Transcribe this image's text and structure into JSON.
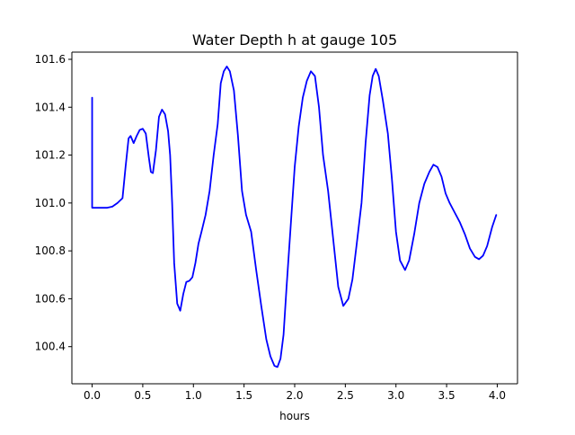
{
  "chart_data": {
    "type": "line",
    "title": "Water Depth h at gauge 105",
    "xlabel": "hours",
    "ylabel": "",
    "xlim": [
      -0.2,
      4.2
    ],
    "ylim": [
      100.245,
      101.63
    ],
    "x_ticks": [
      0.0,
      0.5,
      1.0,
      1.5,
      2.0,
      2.5,
      3.0,
      3.5,
      4.0
    ],
    "x_tick_labels": [
      "0.0",
      "0.5",
      "1.0",
      "1.5",
      "2.0",
      "2.5",
      "3.0",
      "3.5",
      "4.0"
    ],
    "y_ticks": [
      100.4,
      100.6,
      100.8,
      101.0,
      101.2,
      101.4,
      101.6
    ],
    "y_tick_labels": [
      "100.4",
      "100.6",
      "100.8",
      "101.0",
      "101.2",
      "101.4",
      "101.6"
    ],
    "grid": false,
    "series": [
      {
        "color": "#0000ff",
        "x": [
          0.0,
          0.0,
          0.1,
          0.15,
          0.2,
          0.25,
          0.3,
          0.33,
          0.36,
          0.38,
          0.41,
          0.44,
          0.47,
          0.5,
          0.53,
          0.56,
          0.58,
          0.6,
          0.63,
          0.66,
          0.69,
          0.72,
          0.75,
          0.77,
          0.79,
          0.81,
          0.84,
          0.87,
          0.9,
          0.93,
          0.96,
          0.99,
          1.02,
          1.05,
          1.08,
          1.12,
          1.16,
          1.2,
          1.24,
          1.27,
          1.3,
          1.33,
          1.36,
          1.4,
          1.44,
          1.48,
          1.52,
          1.57,
          1.62,
          1.67,
          1.72,
          1.76,
          1.8,
          1.83,
          1.86,
          1.89,
          1.92,
          1.96,
          2.0,
          2.04,
          2.08,
          2.12,
          2.16,
          2.2,
          2.24,
          2.28,
          2.33,
          2.38,
          2.43,
          2.48,
          2.53,
          2.57,
          2.61,
          2.66,
          2.7,
          2.74,
          2.77,
          2.8,
          2.83,
          2.87,
          2.92,
          2.96,
          3.0,
          3.04,
          3.09,
          3.13,
          3.18,
          3.23,
          3.28,
          3.33,
          3.37,
          3.41,
          3.45,
          3.49,
          3.53,
          3.58,
          3.63,
          3.68,
          3.73,
          3.78,
          3.82,
          3.86,
          3.9,
          3.95,
          3.99
        ],
        "y": [
          101.44,
          100.98,
          100.98,
          100.98,
          100.985,
          101.0,
          101.02,
          101.15,
          101.27,
          101.28,
          101.25,
          101.28,
          101.305,
          101.31,
          101.29,
          101.19,
          101.13,
          101.125,
          101.22,
          101.36,
          101.39,
          101.37,
          101.3,
          101.2,
          101.0,
          100.75,
          100.58,
          100.55,
          100.62,
          100.67,
          100.675,
          100.69,
          100.75,
          100.83,
          100.88,
          100.95,
          101.05,
          101.2,
          101.33,
          101.5,
          101.55,
          101.57,
          101.55,
          101.47,
          101.28,
          101.05,
          100.95,
          100.88,
          100.72,
          100.57,
          100.43,
          100.36,
          100.32,
          100.315,
          100.35,
          100.45,
          100.65,
          100.9,
          101.15,
          101.32,
          101.44,
          101.51,
          101.55,
          101.53,
          101.4,
          101.2,
          101.05,
          100.85,
          100.65,
          100.57,
          100.6,
          100.68,
          100.82,
          101.0,
          101.25,
          101.45,
          101.53,
          101.56,
          101.53,
          101.43,
          101.29,
          101.1,
          100.88,
          100.76,
          100.72,
          100.76,
          100.87,
          101.0,
          101.08,
          101.13,
          101.16,
          101.15,
          101.11,
          101.04,
          101.0,
          100.96,
          100.92,
          100.87,
          100.81,
          100.775,
          100.765,
          100.78,
          100.82,
          100.9,
          100.95
        ]
      }
    ]
  }
}
